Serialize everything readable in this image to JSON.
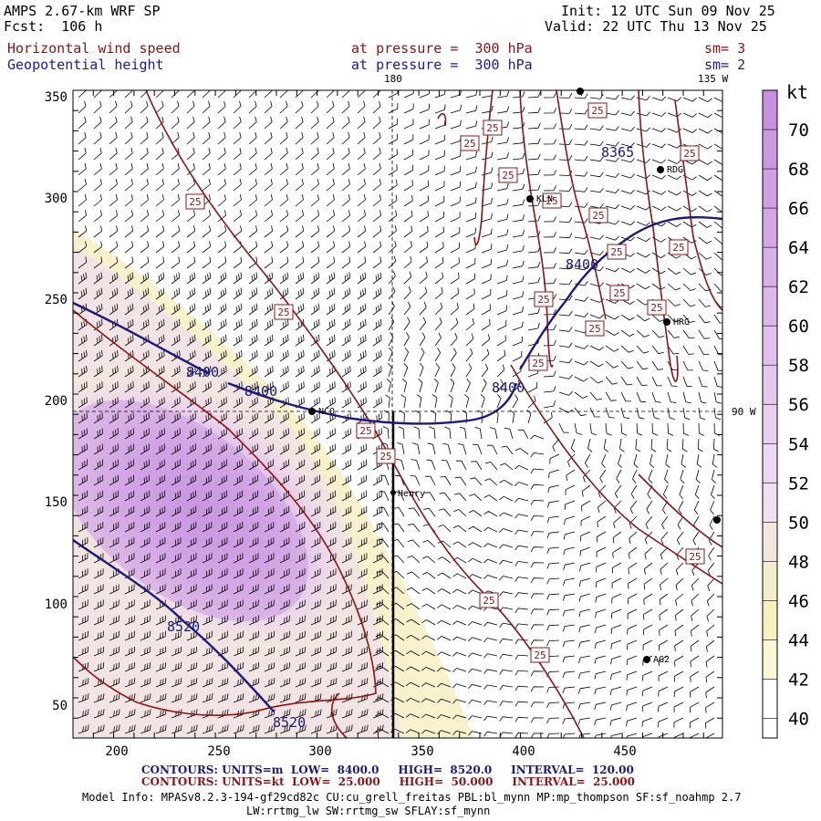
{
  "header": {
    "model": "AMPS 2.67-km WRF SP",
    "fcst": "Fcst:  106 h",
    "init": "Init: 12 UTC Sun 09 Nov 25",
    "valid": "Valid: 22 UTC Thu 13 Nov 25",
    "field1_name": "Horizontal wind speed",
    "field1_level": "at pressure =  300 hPa",
    "field1_sm": "sm= 3",
    "field2_name": "Geopotential height",
    "field2_level": "at pressure =  300 hPa",
    "field2_sm": "sm= 2"
  },
  "map": {
    "lon_labels": [
      "180",
      "135 W",
      "90 W"
    ],
    "x_ticks": [
      "200",
      "250",
      "300",
      "350",
      "400",
      "450"
    ],
    "y_ticks": [
      "50",
      "100",
      "150",
      "200",
      "250",
      "300",
      "350"
    ],
    "stations": [
      "KLN",
      "RDG",
      "HRG",
      "NCO",
      "Henry",
      "AG2"
    ],
    "height_labels": [
      "8400",
      "8400",
      "8400",
      "8400",
      "8365",
      "8520",
      "8520"
    ],
    "speed_labels": [
      "25",
      "25",
      "25",
      "25",
      "25",
      "25",
      "25",
      "25",
      "25",
      "25",
      "25",
      "25",
      "25",
      "25",
      "25",
      "25",
      "25",
      "25",
      "25",
      "25",
      "25"
    ]
  },
  "colorbar": {
    "unit": "kt",
    "ticks": [
      "70",
      "68",
      "66",
      "64",
      "62",
      "60",
      "58",
      "56",
      "54",
      "52",
      "50",
      "48",
      "46",
      "44",
      "42",
      "40"
    ],
    "colors": [
      "#c890e0",
      "#cc98e2",
      "#d0a0e4",
      "#d4a8e6",
      "#d8b0e8",
      "#dcb8ea",
      "#e0c0ec",
      "#e4c8ee",
      "#e8d0f0",
      "#ecd8f2",
      "#f0e0f0",
      "#f2e8e0",
      "#f4eed0",
      "#f6f2c0",
      "#faf6d8",
      "#ffffff"
    ]
  },
  "contour_info": {
    "line1": "CONTOURS: UNITS=m  LOW=  8400.0     HIGH=  8520.0     INTERVAL=  120.00",
    "line2": "CONTOURS: UNITS=kt  LOW=  25.000     HIGH=  50.000     INTERVAL=  25.000"
  },
  "model_info": {
    "line1": "Model Info: MPASv8.2.3-194-gf29cd82c CU:cu_grell_freitas PBL:bl_mynn MP:mp_thompson SF:sf_noahmp 2.7",
    "line2": "LW:rrtmg_lw SW:rrtmg_sw SFLAY:sf_mynn"
  }
}
